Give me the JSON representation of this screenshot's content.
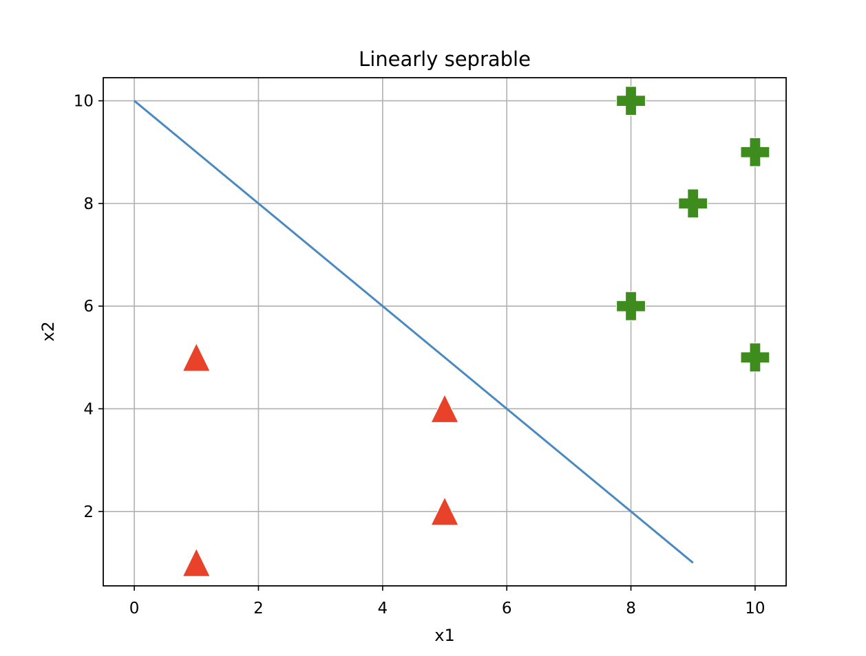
{
  "chart_data": {
    "type": "scatter",
    "title": "Linearly seprable",
    "xlabel": "x1",
    "ylabel": "x2",
    "xlim": [
      -0.5,
      10.5
    ],
    "ylim": [
      0.55,
      10.45
    ],
    "xticks": [
      0,
      2,
      4,
      6,
      8,
      10
    ],
    "yticks": [
      2,
      4,
      6,
      8,
      10
    ],
    "xtick_labels": [
      "0",
      "2",
      "4",
      "6",
      "8",
      "10"
    ],
    "ytick_labels": [
      "2",
      "4",
      "6",
      "8",
      "10"
    ],
    "grid": true,
    "series": [
      {
        "marker": "triangle",
        "color": "#e8432a",
        "points": [
          [
            1,
            5
          ],
          [
            1,
            1
          ],
          [
            5,
            4
          ],
          [
            5,
            2
          ]
        ]
      },
      {
        "marker": "plus",
        "color": "#3f8c1e",
        "points": [
          [
            8,
            10
          ],
          [
            10,
            9
          ],
          [
            9,
            8
          ],
          [
            8,
            6
          ],
          [
            10,
            5
          ]
        ]
      },
      {
        "marker": "line",
        "color": "#4a89c0",
        "points": [
          [
            0,
            10
          ],
          [
            9,
            1
          ]
        ]
      }
    ]
  }
}
